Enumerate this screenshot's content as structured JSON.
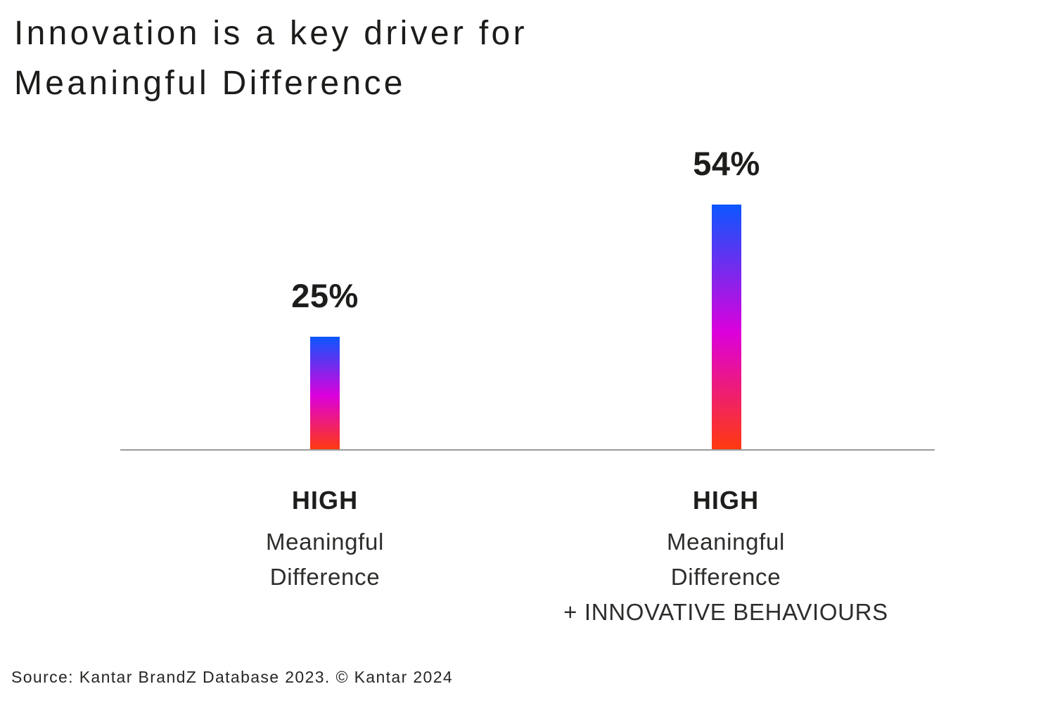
{
  "title": {
    "line1": "Innovation is a key driver for",
    "line2": "Meaningful Difference"
  },
  "chart_data": {
    "type": "bar",
    "categories": [
      "HIGH Meaningful Difference",
      "HIGH Meaningful Difference + INNOVATIVE BEHAVIOURS"
    ],
    "values": [
      25,
      54
    ],
    "unit": "%",
    "ylim": [
      0,
      54
    ],
    "grid": false,
    "legend": false,
    "axis_color": "#9a9a9a",
    "bar_gradient": {
      "top": "#0b57ff",
      "middle": "#dc00dc",
      "bottom": "#ff3a0d"
    },
    "bars": [
      {
        "value": 25,
        "value_label": "25%",
        "label_title": "HIGH",
        "label_line1": "Meaningful",
        "label_line2": "Difference"
      },
      {
        "value": 54,
        "value_label": "54%",
        "label_title": "HIGH",
        "label_line1": "Meaningful",
        "label_line2": "Difference",
        "label_line3": "+ INNOVATIVE BEHAVIOURS"
      }
    ]
  },
  "source": "Source: Kantar BrandZ Database 2023. © Kantar 2024",
  "colors": {
    "background": "#ffffff",
    "text": "#1d1d1b"
  }
}
